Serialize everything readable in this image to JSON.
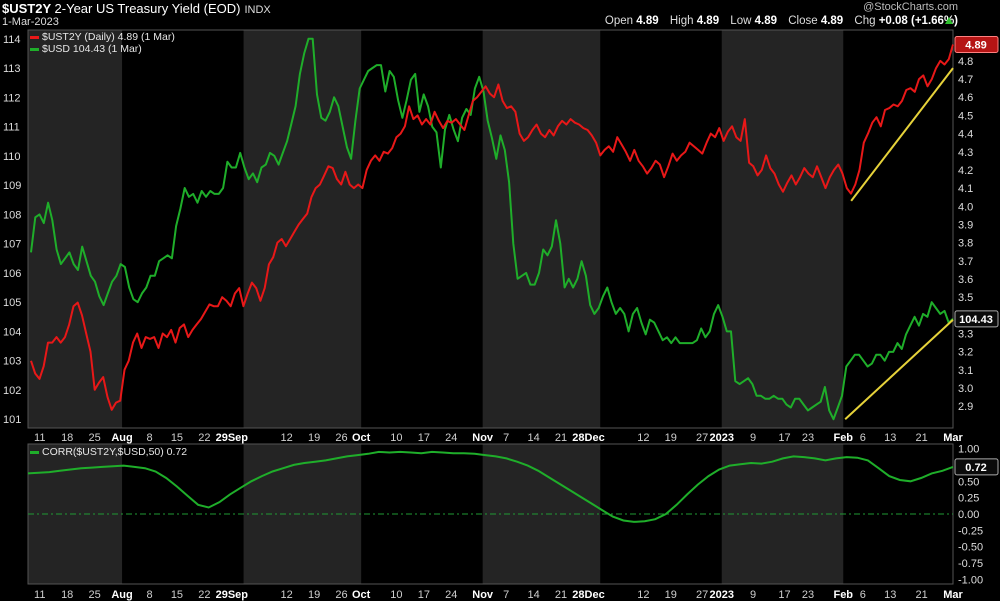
{
  "header": {
    "symbol": "$UST2Y",
    "description": "2-Year US Treasury Yield (EOD)",
    "exchange": "INDX",
    "date": "1-Mar-2023",
    "watermark": "@StockCharts.com",
    "open_label": "Open",
    "open": "4.89",
    "high_label": "High",
    "high": "4.89",
    "low_label": "Low",
    "low": "4.89",
    "close_label": "Close",
    "close": "4.89",
    "chg_label": "Chg",
    "chg": "+0.08 (+1.66%)",
    "up_arrow_icon": "up-arrow-icon"
  },
  "colors": {
    "background": "#000000",
    "shade": "#242424",
    "ust2y": "#e81818",
    "usd": "#1fae2a",
    "trendline": "#e6d23a",
    "corr": "#1fae2a",
    "zero_line": "#1f9a35",
    "grid": "#3a3a3a"
  },
  "legend": {
    "ust2y": "$UST2Y (Daily) 4.89 (1 Mar)",
    "usd": "$USD 104.43 (1 Mar)",
    "corr": "CORR($UST2Y,$USD,50) 0.72"
  },
  "chart_data": [
    {
      "type": "line",
      "x_axis": {
        "range": [
          "2022-07-08",
          "2023-03-01"
        ],
        "ticks": [
          "11",
          "18",
          "25",
          "Aug",
          "8",
          "15",
          "22",
          "29Sep",
          "12",
          "19",
          "26",
          "Oct",
          "10",
          "17",
          "24",
          "Nov",
          "7",
          "14",
          "21",
          "28Dec",
          "12",
          "19",
          "27",
          "2023",
          "9",
          "17",
          "23",
          "Feb",
          "6",
          "13",
          "21",
          "Mar"
        ],
        "bold_ticks": [
          "Aug",
          "Sep",
          "Oct",
          "Nov",
          "Dec",
          "2023",
          "Feb",
          "Mar"
        ]
      },
      "left_axis": {
        "label": "",
        "range": [
          100.7,
          114.3
        ],
        "ticks": [
          101,
          102,
          103,
          104,
          105,
          106,
          107,
          108,
          109,
          110,
          111,
          112,
          113,
          114
        ]
      },
      "right_axis": {
        "label": "",
        "range": [
          2.78,
          4.97
        ],
        "ticks": [
          2.9,
          3.0,
          3.1,
          3.2,
          3.3,
          3.4,
          3.5,
          3.6,
          3.7,
          3.8,
          3.9,
          4.0,
          4.1,
          4.2,
          4.3,
          4.4,
          4.5,
          4.6,
          4.7,
          4.8,
          4.9
        ]
      },
      "series": [
        {
          "name": "$UST2Y",
          "axis": "right",
          "last_value_label": "4.89",
          "values": [
            3.15,
            3.08,
            3.05,
            3.12,
            3.25,
            3.25,
            3.28,
            3.25,
            3.28,
            3.35,
            3.45,
            3.47,
            3.4,
            3.3,
            3.2,
            2.99,
            3.03,
            3.06,
            2.95,
            2.88,
            2.92,
            2.93,
            3.1,
            3.15,
            3.25,
            3.3,
            3.22,
            3.28,
            3.27,
            3.28,
            3.22,
            3.3,
            3.28,
            3.32,
            3.25,
            3.33,
            3.35,
            3.28,
            3.32,
            3.35,
            3.38,
            3.42,
            3.46,
            3.45,
            3.45,
            3.5,
            3.48,
            3.45,
            3.52,
            3.55,
            3.45,
            3.52,
            3.58,
            3.55,
            3.48,
            3.55,
            3.68,
            3.72,
            3.8,
            3.82,
            3.78,
            3.82,
            3.86,
            3.9,
            3.93,
            3.96,
            4.05,
            4.1,
            4.12,
            4.17,
            4.22,
            4.21,
            4.15,
            4.12,
            4.19,
            4.12,
            4.1,
            4.12,
            4.1,
            4.2,
            4.25,
            4.28,
            4.25,
            4.3,
            4.29,
            4.32,
            4.38,
            4.4,
            4.44,
            4.55,
            4.48,
            4.5,
            4.45,
            4.48,
            4.45,
            4.52,
            4.47,
            4.43,
            4.47,
            4.46,
            4.48,
            4.45,
            4.42,
            4.5,
            4.58,
            4.6,
            4.63,
            4.66,
            4.62,
            4.6,
            4.67,
            4.58,
            4.54,
            4.55,
            4.52,
            4.4,
            4.36,
            4.38,
            4.42,
            4.45,
            4.4,
            4.38,
            4.42,
            4.39,
            4.44,
            4.47,
            4.45,
            4.48,
            4.46,
            4.45,
            4.43,
            4.42,
            4.39,
            4.35,
            4.28,
            4.31,
            4.33,
            4.3,
            4.38,
            4.34,
            4.3,
            4.25,
            4.31,
            4.25,
            4.22,
            4.18,
            4.21,
            4.25,
            4.23,
            4.16,
            4.22,
            4.29,
            4.25,
            4.28,
            4.3,
            4.35,
            4.33,
            4.31,
            4.29,
            4.35,
            4.4,
            4.38,
            4.43,
            4.36,
            4.41,
            4.44,
            4.38,
            4.36,
            4.48,
            4.24,
            4.22,
            4.17,
            4.2,
            4.28,
            4.21,
            4.18,
            4.12,
            4.08,
            4.13,
            4.17,
            4.12,
            4.16,
            4.21,
            4.18,
            4.16,
            4.22,
            4.16,
            4.1,
            4.16,
            4.2,
            4.23,
            4.18,
            4.1,
            4.07,
            4.12,
            4.2,
            4.35,
            4.4,
            4.46,
            4.49,
            4.44,
            4.53,
            4.54,
            4.56,
            4.55,
            4.58,
            4.64,
            4.65,
            4.63,
            4.7,
            4.72,
            4.66,
            4.7,
            4.76,
            4.8,
            4.78,
            4.81,
            4.89
          ]
        },
        {
          "name": "$USD",
          "axis": "left",
          "last_value_label": "104.43",
          "values": [
            106.7,
            107.9,
            108.0,
            107.7,
            108.4,
            107.8,
            106.8,
            106.3,
            106.5,
            106.7,
            106.3,
            106.1,
            106.9,
            106.4,
            105.9,
            105.7,
            105.2,
            104.9,
            105.3,
            105.7,
            105.9,
            106.3,
            106.2,
            105.5,
            105.1,
            105.0,
            105.3,
            105.5,
            105.9,
            105.9,
            106.4,
            106.5,
            106.6,
            106.5,
            107.6,
            108.2,
            108.9,
            108.6,
            108.7,
            108.4,
            108.8,
            108.6,
            108.8,
            108.7,
            108.7,
            108.9,
            109.8,
            109.6,
            109.6,
            110.1,
            109.6,
            109.2,
            109.4,
            109.1,
            109.6,
            109.7,
            110.1,
            110.0,
            109.7,
            110.1,
            110.5,
            111.1,
            111.7,
            112.8,
            113.5,
            114.0,
            114.0,
            112.1,
            111.3,
            111.2,
            111.5,
            112.0,
            111.7,
            111.0,
            110.3,
            109.9,
            111.2,
            112.3,
            112.6,
            112.9,
            113.0,
            113.1,
            113.1,
            112.2,
            112.9,
            112.7,
            111.9,
            111.3,
            111.9,
            112.6,
            112.8,
            111.5,
            112.1,
            111.7,
            111.0,
            110.8,
            109.6,
            110.9,
            111.4,
            110.9,
            110.5,
            111.3,
            111.6,
            111.4,
            112.3,
            112.7,
            112.2,
            111.2,
            110.6,
            109.9,
            110.7,
            110.2,
            109.1,
            107.0,
            105.8,
            105.9,
            106.0,
            105.6,
            105.6,
            106.0,
            106.8,
            106.6,
            106.9,
            107.8,
            107.0,
            105.5,
            105.8,
            105.5,
            105.8,
            106.4,
            105.9,
            104.9,
            104.6,
            104.8,
            105.2,
            105.5,
            105.0,
            104.6,
            104.8,
            104.6,
            104.0,
            104.6,
            104.8,
            104.3,
            103.9,
            104.4,
            104.3,
            104.0,
            103.7,
            103.8,
            103.6,
            103.8,
            103.6,
            103.6,
            103.6,
            103.6,
            103.7,
            104.1,
            103.8,
            104.0,
            104.6,
            104.9,
            104.5,
            104.0,
            104.0,
            102.3,
            102.2,
            102.3,
            102.4,
            102.2,
            101.8,
            101.8,
            101.7,
            101.7,
            101.8,
            101.7,
            101.7,
            101.5,
            101.4,
            101.7,
            101.7,
            101.5,
            101.3,
            101.4,
            101.5,
            101.6,
            102.1,
            101.3,
            101.0,
            101.4,
            101.8,
            102.8,
            103.0,
            103.2,
            103.2,
            103.0,
            102.8,
            102.9,
            103.2,
            103.2,
            103.0,
            103.3,
            103.3,
            103.6,
            103.4,
            103.9,
            104.2,
            104.5,
            104.2,
            104.6,
            104.5,
            105.0,
            104.8,
            104.6,
            104.7,
            104.3,
            104.43
          ]
        },
        {
          "name": "",
          "axis": "right",
          "values": [
            4.03,
            4.76
          ]
        },
        {
          "name": "",
          "axis": "left",
          "values": [
            101.0,
            104.4
          ]
        }
      ]
    },
    {
      "type": "line",
      "x_axis": {
        "range": [
          "2022-07-08",
          "2023-03-01"
        ],
        "ticks": [
          "11",
          "18",
          "25",
          "Aug",
          "8",
          "15",
          "22",
          "29Sep",
          "12",
          "19",
          "26",
          "Oct",
          "10",
          "17",
          "24",
          "Nov",
          "7",
          "14",
          "21",
          "28Dec",
          "12",
          "19",
          "27",
          "2023",
          "9",
          "17",
          "23",
          "Feb",
          "6",
          "13",
          "21",
          "Mar"
        ]
      },
      "right_axis": {
        "label": "",
        "range": [
          -1.07,
          1.07
        ],
        "ticks": [
          1.0,
          0.75,
          0.5,
          0.25,
          0.0,
          -0.25,
          -0.5,
          -0.75,
          -1.0
        ]
      },
      "series": [
        {
          "name": "CORR($UST2Y,$USD,50)",
          "axis": "right",
          "last_value_label": "0.72",
          "values": [
            0.62,
            0.63,
            0.64,
            0.66,
            0.68,
            0.7,
            0.71,
            0.72,
            0.73,
            0.74,
            0.72,
            0.7,
            0.65,
            0.55,
            0.42,
            0.28,
            0.14,
            0.1,
            0.18,
            0.3,
            0.4,
            0.5,
            0.58,
            0.65,
            0.7,
            0.75,
            0.78,
            0.8,
            0.82,
            0.85,
            0.88,
            0.9,
            0.92,
            0.95,
            0.94,
            0.95,
            0.94,
            0.93,
            0.95,
            0.94,
            0.93,
            0.93,
            0.92,
            0.9,
            0.88,
            0.85,
            0.8,
            0.74,
            0.66,
            0.56,
            0.46,
            0.36,
            0.26,
            0.16,
            0.06,
            -0.04,
            -0.1,
            -0.12,
            -0.11,
            -0.08,
            0.0,
            0.14,
            0.3,
            0.45,
            0.58,
            0.68,
            0.74,
            0.76,
            0.78,
            0.77,
            0.8,
            0.85,
            0.88,
            0.87,
            0.85,
            0.82,
            0.85,
            0.87,
            0.86,
            0.82,
            0.7,
            0.58,
            0.52,
            0.5,
            0.55,
            0.62,
            0.66,
            0.72
          ]
        }
      ]
    }
  ],
  "price_labels": {
    "ust2y_last": "4.89",
    "usd_last": "104.43",
    "corr_last": "0.72"
  }
}
